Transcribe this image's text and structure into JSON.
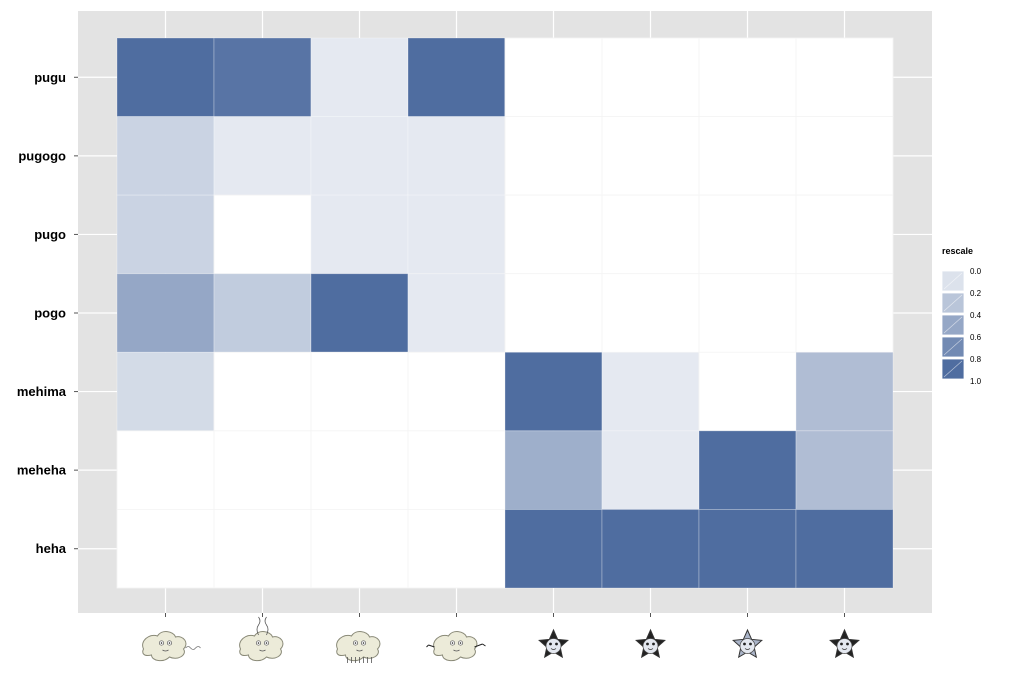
{
  "chart_data": {
    "type": "heatmap",
    "title": "",
    "xlabel": "",
    "ylabel": "",
    "rows": [
      "pugu",
      "pugogo",
      "pugo",
      "pogo",
      "mehima",
      "meheha",
      "heha"
    ],
    "columns": [
      "creature-1",
      "creature-2",
      "creature-3",
      "creature-4",
      "star-1",
      "star-2",
      "star-3",
      "star-4"
    ],
    "column_icons": [
      "amoeba-tail-icon",
      "amoeba-antenna-icon",
      "amoeba-legs-icon",
      "amoeba-arms-icon",
      "star-creature-icon",
      "star-creature-icon",
      "star-creature-icon",
      "star-creature-icon"
    ],
    "values": [
      [
        1.0,
        0.95,
        0.15,
        1.0,
        0.0,
        0.0,
        0.0,
        0.0
      ],
      [
        0.3,
        0.15,
        0.15,
        0.15,
        0.0,
        0.0,
        0.0,
        0.0
      ],
      [
        0.3,
        0.0,
        0.15,
        0.15,
        0.0,
        0.0,
        0.0,
        0.0
      ],
      [
        0.6,
        0.35,
        1.0,
        0.15,
        0.0,
        0.0,
        0.0,
        0.0
      ],
      [
        0.25,
        0.0,
        0.0,
        0.0,
        1.0,
        0.15,
        0.0,
        0.45
      ],
      [
        0.0,
        0.0,
        0.0,
        0.0,
        0.55,
        0.15,
        1.0,
        0.45
      ],
      [
        0.0,
        0.0,
        0.0,
        0.0,
        1.0,
        1.0,
        1.0,
        1.0
      ]
    ],
    "legend": {
      "title": "rescale",
      "placement": "right",
      "ticks": [
        "0.0",
        "0.2",
        "0.4",
        "0.6",
        "0.8",
        "1.0"
      ],
      "tick_values": [
        0.0,
        0.2,
        0.4,
        0.6,
        0.8,
        1.0
      ]
    },
    "colors": {
      "low": "#ffffff",
      "high": "#4f6da0",
      "panel": "#e3e3e3",
      "grid": "#f4f4f4"
    },
    "grid": true
  }
}
